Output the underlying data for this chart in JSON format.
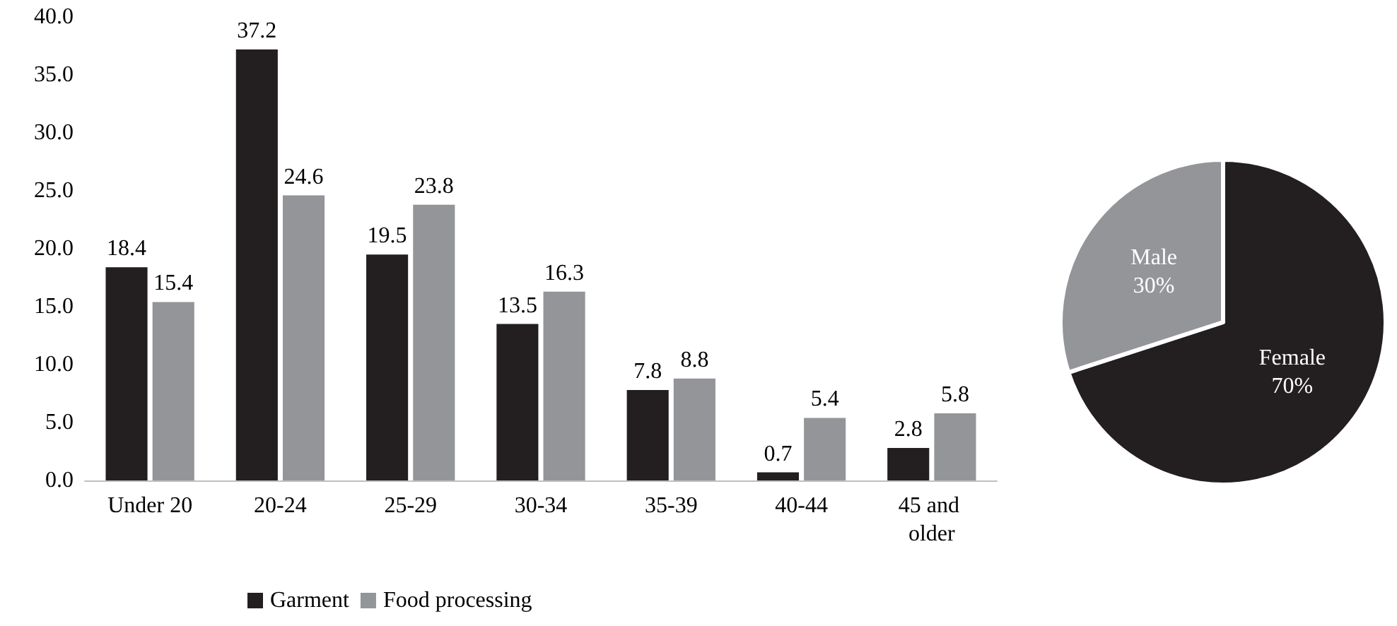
{
  "chart_data": [
    {
      "type": "bar",
      "categories": [
        "Under 20",
        "20-24",
        "25-29",
        "30-34",
        "35-39",
        "40-44",
        "45 and older"
      ],
      "series": [
        {
          "name": "Garment",
          "color": "#231f20",
          "values": [
            18.4,
            37.2,
            19.5,
            13.5,
            7.8,
            0.7,
            2.8
          ]
        },
        {
          "name": "Food processing",
          "color": "#939598",
          "values": [
            15.4,
            24.6,
            23.8,
            16.3,
            8.8,
            5.4,
            5.8
          ]
        }
      ],
      "ylim": [
        0,
        40
      ],
      "yticks": [
        {
          "value": 0,
          "label": "0.0"
        },
        {
          "value": 5,
          "label": "5.0"
        },
        {
          "value": 10,
          "label": "10.0"
        },
        {
          "value": 15,
          "label": "15.0"
        },
        {
          "value": 20,
          "label": "20.0"
        },
        {
          "value": 25,
          "label": "25.0"
        },
        {
          "value": 30,
          "label": "30.0"
        },
        {
          "value": 35,
          "label": "35.0"
        },
        {
          "value": 40,
          "label": "40.0"
        }
      ],
      "grid": false,
      "legend": "bottom",
      "data_labels": true
    },
    {
      "type": "pie",
      "categories": [
        "Female",
        "Male"
      ],
      "values": [
        70,
        30
      ],
      "colors": [
        "#231f20",
        "#939598"
      ],
      "value_labels": [
        "70%",
        "30%"
      ]
    }
  ]
}
